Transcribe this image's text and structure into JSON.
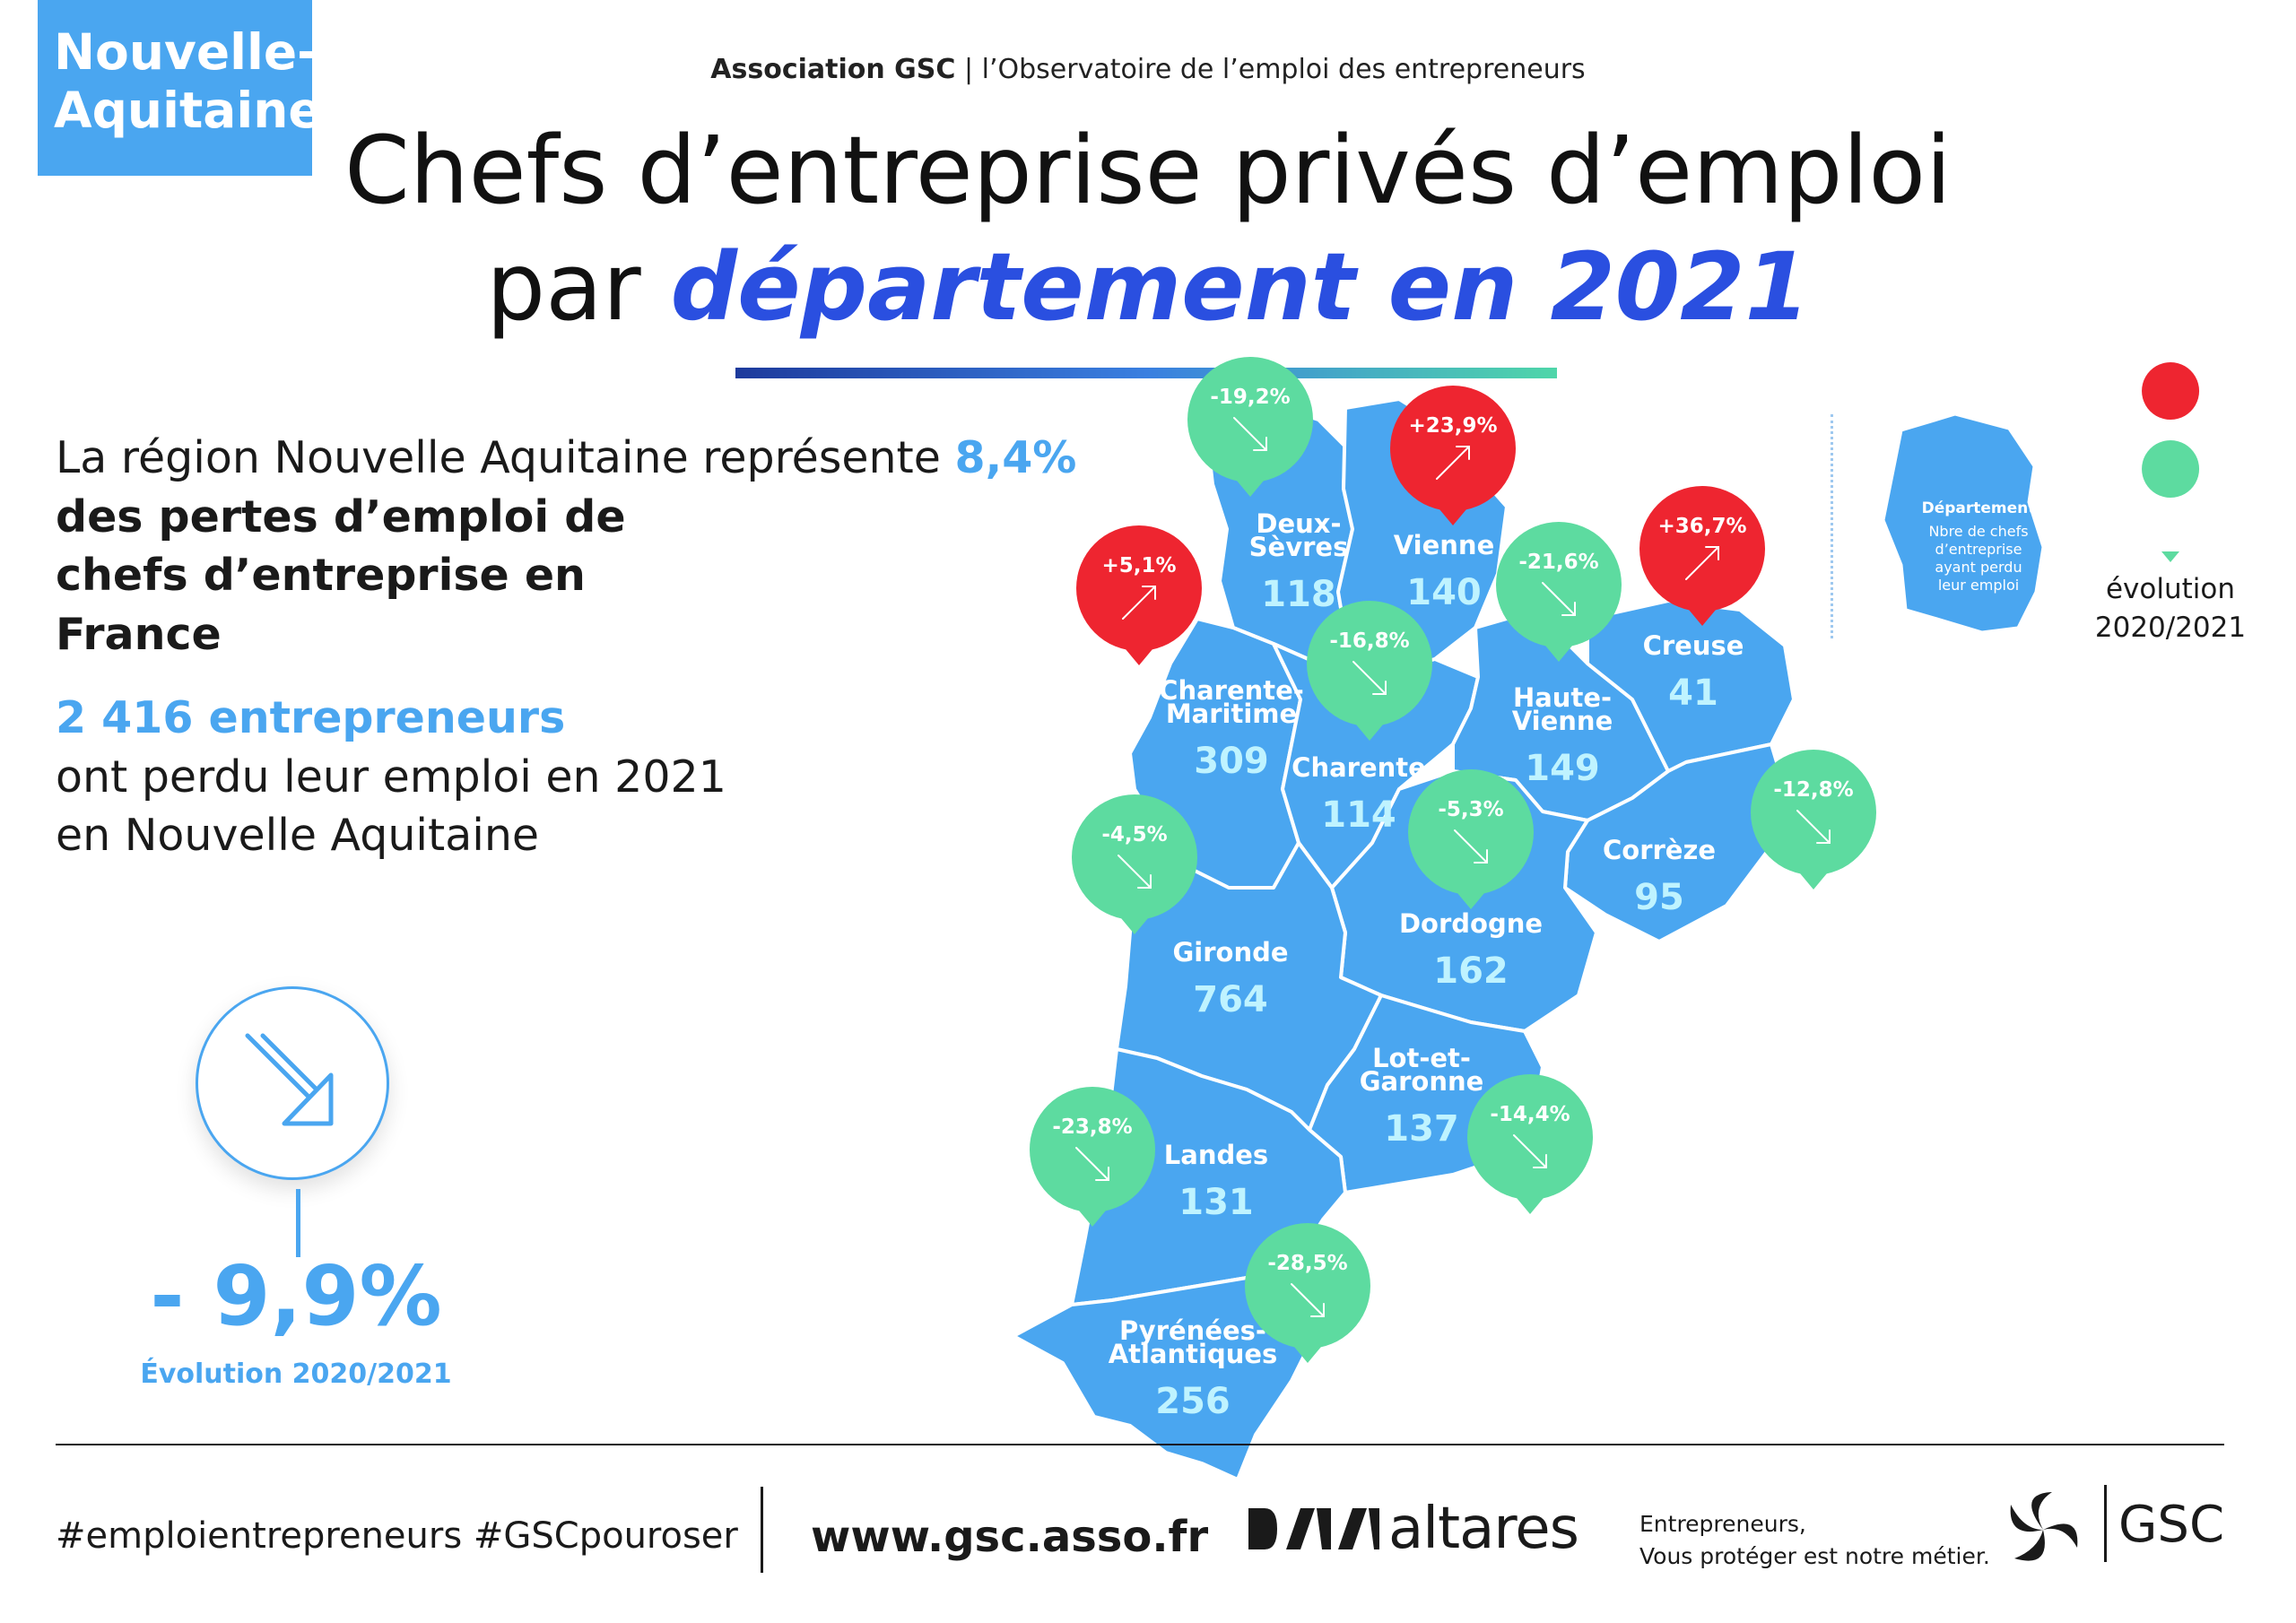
{
  "region_badge": "Nouvelle-\nAquitaine",
  "header": {
    "assoc_name": "Association GSC",
    "assoc_tagline": "| l’Observatoire de l’emploi des entrepreneurs",
    "title_line1": "Chefs d’entreprise privés d’emploi",
    "title_line2_plain": "par ",
    "title_line2_accent": "département en 2021"
  },
  "intro": {
    "part1": "La région Nouvelle Aquitaine représente ",
    "share": "8,4%",
    "part2": "des pertes d’emploi de chefs d’entreprise en France"
  },
  "total": {
    "count_label": "2 416 entrepreneurs",
    "line2": "ont perdu leur emploi en 2021",
    "line3": "en Nouvelle Aquitaine"
  },
  "overall_evolution": {
    "value": "- 9,9%",
    "label": "Évolution 2020/2021",
    "direction": "down"
  },
  "departments": [
    {
      "name": [
        "Deux-",
        "Sèvres"
      ],
      "count": "118",
      "evolution": "-19,2%",
      "trend": "down"
    },
    {
      "name": [
        "Vienne"
      ],
      "count": "140",
      "evolution": "+23,9%",
      "trend": "up"
    },
    {
      "name": [
        "Charente-",
        "Maritime"
      ],
      "count": "309",
      "evolution": "+5,1%",
      "trend": "up"
    },
    {
      "name": [
        "Charente"
      ],
      "count": "114",
      "evolution": "-16,8%",
      "trend": "down"
    },
    {
      "name": [
        "Haute-",
        "Vienne"
      ],
      "count": "149",
      "evolution": "-21,6%",
      "trend": "down"
    },
    {
      "name": [
        "Creuse"
      ],
      "count": "41",
      "evolution": "+36,7%",
      "trend": "up"
    },
    {
      "name": [
        "Corrèze"
      ],
      "count": "95",
      "evolution": "-12,8%",
      "trend": "down"
    },
    {
      "name": [
        "Dordogne"
      ],
      "count": "162",
      "evolution": "-5,3%",
      "trend": "down"
    },
    {
      "name": [
        "Gironde"
      ],
      "count": "764",
      "evolution": "-4,5%",
      "trend": "down"
    },
    {
      "name": [
        "Lot-et-",
        "Garonne"
      ],
      "count": "137",
      "evolution": "-14,4%",
      "trend": "down"
    },
    {
      "name": [
        "Landes"
      ],
      "count": "131",
      "evolution": "-23,8%",
      "trend": "down"
    },
    {
      "name": [
        "Pyrénées-",
        "Atlantiques"
      ],
      "count": "256",
      "evolution": "-28,5%",
      "trend": "down"
    }
  ],
  "legend": {
    "title": "Département",
    "text": [
      "Nbre de chefs",
      "d’entreprise",
      "ayant perdu",
      "leur emploi"
    ],
    "evolution_label_line1": "évolution",
    "evolution_label_line2": "2020/2021"
  },
  "colors": {
    "map_fill": "#4aa6f0",
    "pin_down": "#5ddba0",
    "pin_up": "#ee2530",
    "accent": "#2a4fe0",
    "count_text": "#bff3ff"
  },
  "footer": {
    "hashtags": "#emploientrepreneurs #GSCpouroser",
    "url": "www.gsc.asso.fr",
    "partner": "altares",
    "slogan_line1": "Entrepreneurs,",
    "slogan_line2": "Vous protéger est notre métier.",
    "brand": "GSC"
  }
}
